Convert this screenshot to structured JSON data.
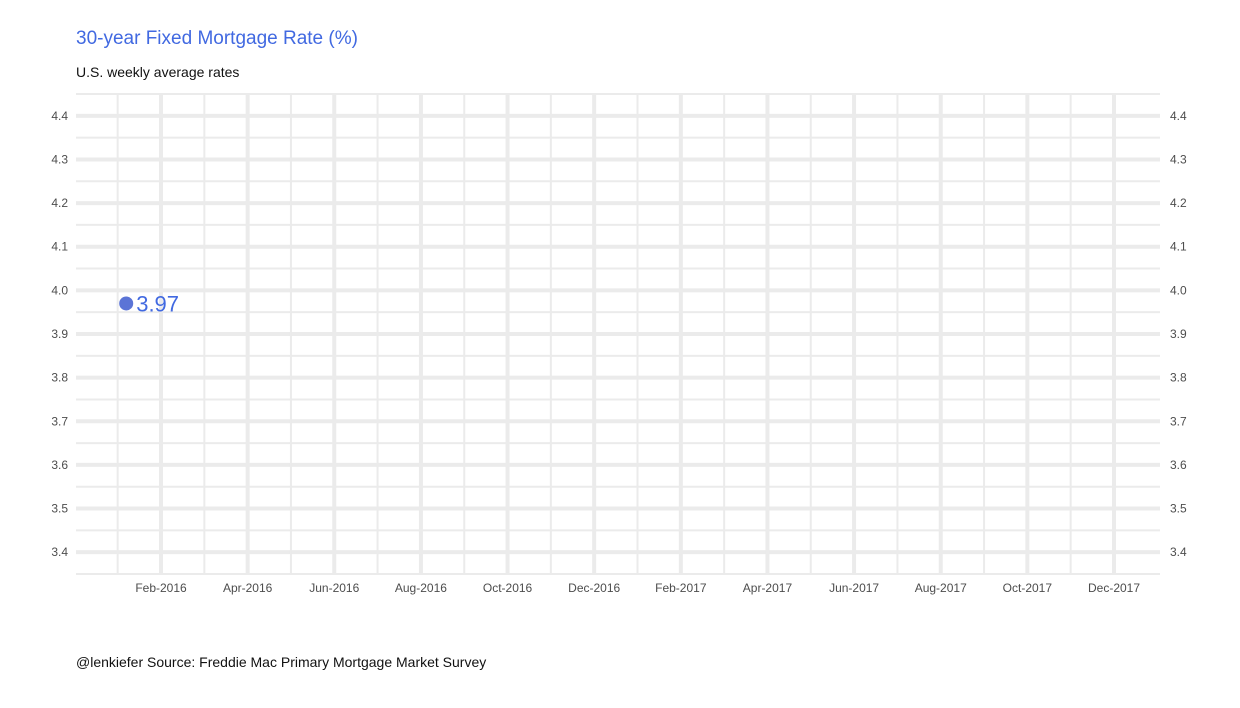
{
  "chart_data": {
    "type": "line",
    "title": "30-year Fixed Mortgage Rate (%)",
    "subtitle": "U.S. weekly average rates",
    "caption": "@lenkiefer Source: Freddie Mac Primary Mortgage Market Survey",
    "xlabel": "",
    "ylabel": "",
    "x_ticks": [
      "Feb-2016",
      "Apr-2016",
      "Jun-2016",
      "Aug-2016",
      "Oct-2016",
      "Dec-2016",
      "Feb-2017",
      "Apr-2017",
      "Jun-2017",
      "Aug-2017",
      "Oct-2017",
      "Dec-2017"
    ],
    "y_ticks": [
      "3.4",
      "3.5",
      "3.6",
      "3.7",
      "3.8",
      "3.9",
      "4.0",
      "4.1",
      "4.2",
      "4.3",
      "4.4"
    ],
    "ylim": [
      3.35,
      4.45
    ],
    "y_axis_sides": "left-and-right",
    "grid": true,
    "series": [
      {
        "points": [
          {
            "x": "2016-01-07",
            "y": 3.97,
            "label": "3.97"
          }
        ]
      }
    ],
    "colors": {
      "accent": "#4169e1",
      "point": "#5b74d6",
      "grid": "#ebebeb",
      "tick_text": "#4d4d4d"
    }
  }
}
